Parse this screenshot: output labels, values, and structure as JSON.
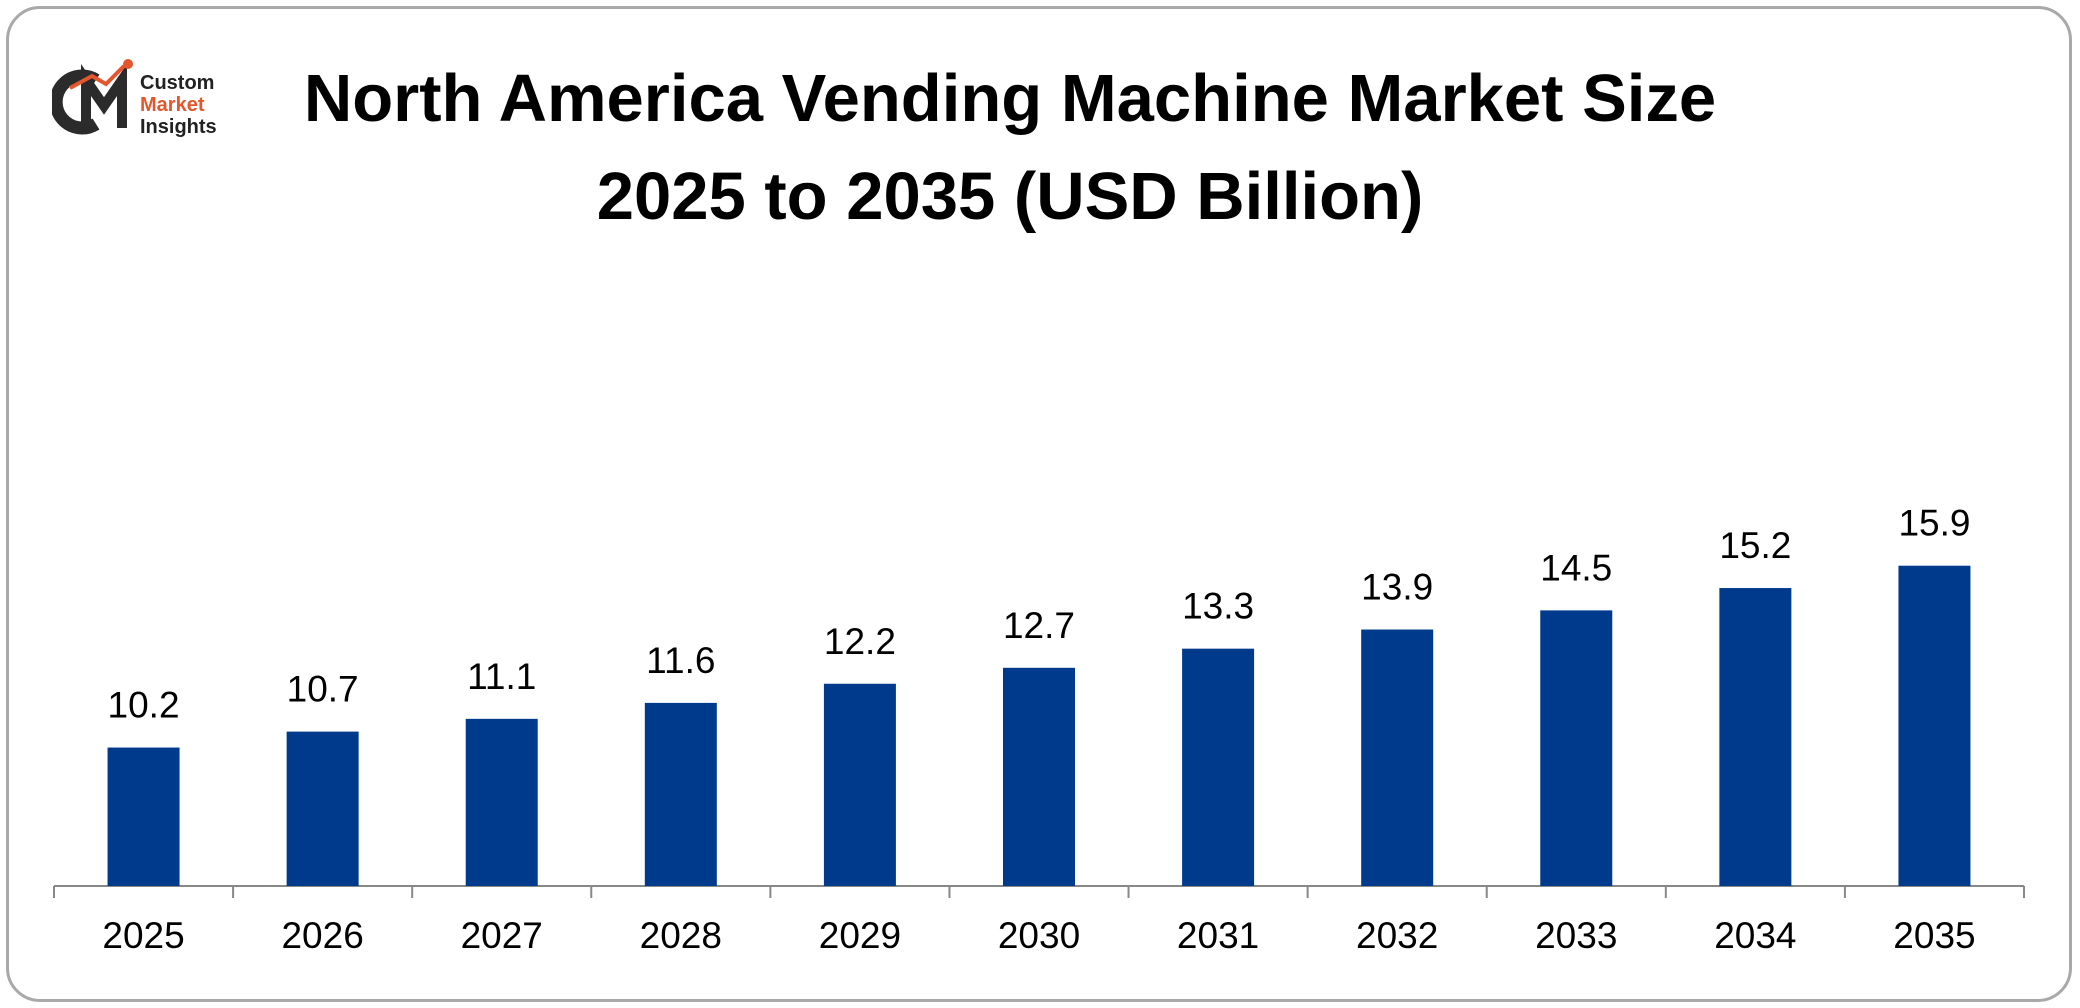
{
  "colors": {
    "bar": "#003a8c",
    "axis": "#888888",
    "frame": "#a9a9a9",
    "logo_dark": "#2b2b2b",
    "logo_accent": "#e4572e"
  },
  "logo": {
    "line1": "Custom",
    "line2": "Market",
    "line3": "Insights",
    "mark_icon": "cmi-logo-icon"
  },
  "chart_data": {
    "type": "bar",
    "title": "North America Vending Machine Market Size",
    "subtitle": "2025 to 2035 (USD Billion)",
    "categories": [
      "2025",
      "2026",
      "2027",
      "2028",
      "2029",
      "2030",
      "2031",
      "2032",
      "2033",
      "2034",
      "2035"
    ],
    "values": [
      10.2,
      10.7,
      11.1,
      11.6,
      12.2,
      12.7,
      13.3,
      13.9,
      14.5,
      15.2,
      15.9
    ],
    "value_labels": [
      "10.2",
      "10.7",
      "11.1",
      "11.6",
      "12.2",
      "12.7",
      "13.3",
      "13.9",
      "14.5",
      "15.2",
      "15.9"
    ],
    "xlabel": "",
    "ylabel": "",
    "grid": false,
    "legend": "none"
  }
}
